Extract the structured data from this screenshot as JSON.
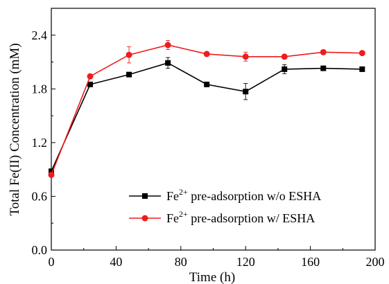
{
  "chart_data": {
    "type": "line",
    "xlabel": "Time (h)",
    "ylabel": "Total Fe(II) Concentration (mM)",
    "xlim": [
      0,
      200
    ],
    "ylim": [
      0,
      2.7
    ],
    "x_ticks": [
      0,
      40,
      80,
      120,
      160,
      200
    ],
    "y_ticks": [
      0.0,
      0.6,
      1.2,
      1.8,
      2.4
    ],
    "x_tick_labels": [
      "0",
      "40",
      "80",
      "120",
      "160",
      "200"
    ],
    "y_tick_labels": [
      "0.0",
      "0.6",
      "1.2",
      "1.8",
      "2.4"
    ],
    "grid": false,
    "legend_position": "bottom-right",
    "series": [
      {
        "name_prefix": "Fe",
        "name_sup": "2+",
        "name_suffix": " pre-adsorption w/o ESHA",
        "color": "#000000",
        "marker": "square",
        "x": [
          0,
          24,
          48,
          72,
          96,
          120,
          144,
          168,
          192
        ],
        "y": [
          0.88,
          1.85,
          1.96,
          2.09,
          1.85,
          1.77,
          2.02,
          2.03,
          2.02
        ],
        "error": [
          0.0,
          0.02,
          0.02,
          0.06,
          0.02,
          0.09,
          0.05,
          0.02,
          0.02
        ]
      },
      {
        "name_prefix": "Fe",
        "name_sup": "2+",
        "name_suffix": " pre-adsorption w/ ESHA",
        "color": "#ee1c1c",
        "marker": "circle",
        "x": [
          0,
          24,
          48,
          72,
          96,
          120,
          144,
          168,
          192
        ],
        "y": [
          0.84,
          1.94,
          2.18,
          2.29,
          2.19,
          2.16,
          2.16,
          2.21,
          2.2
        ],
        "error": [
          0.0,
          0.02,
          0.09,
          0.05,
          0.02,
          0.05,
          0.02,
          0.02,
          0.02
        ]
      }
    ]
  }
}
